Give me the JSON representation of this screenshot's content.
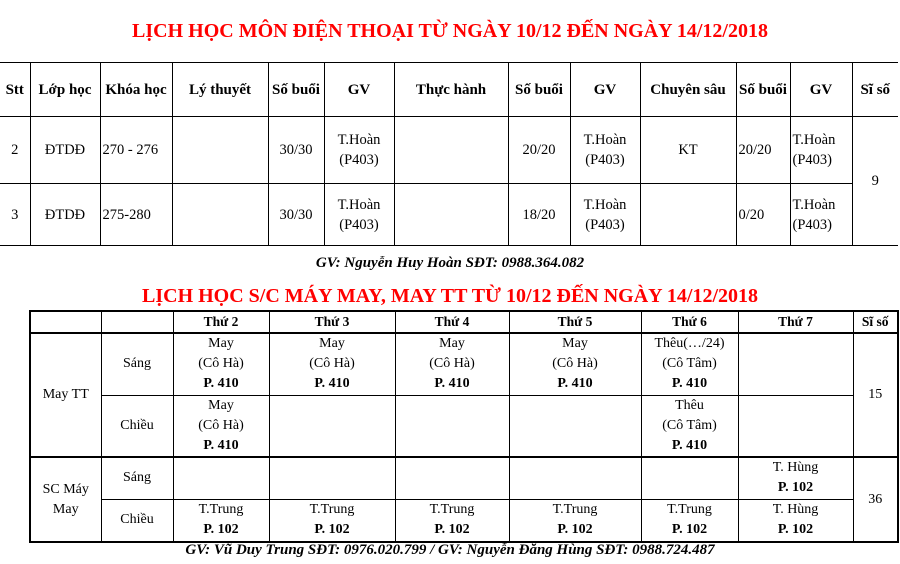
{
  "title1": "LỊCH HỌC MÔN ĐIỆN THOẠI TỪ NGÀY 10/12 ĐẾN NGÀY 14/12/2018",
  "table1": {
    "headers": [
      "Stt",
      "Lớp học",
      "Khóa học",
      "Lý thuyết",
      "Số buổi",
      "GV",
      "Thực hành",
      "Số buổi",
      "GV",
      "Chuyên sâu",
      "Số buổi",
      "GV",
      "Sĩ số"
    ],
    "rows": [
      {
        "stt": "2",
        "lop": "ĐTDĐ",
        "khoa": "270 - 276",
        "ly_thuyet": "",
        "so_buoi1": "30/30",
        "gv1a": "T.Hoàn",
        "gv1b": "(P403)",
        "thuc_hanh": "",
        "so_buoi2": "20/20",
        "gv2a": "T.Hoàn",
        "gv2b": "(P403)",
        "chuyen_sau": "KT",
        "so_buoi3": "20/20",
        "gv3a": "T.Hoàn",
        "gv3b": "(P403)"
      },
      {
        "stt": "3",
        "lop": "ĐTDĐ",
        "khoa": "275-280",
        "ly_thuyet": "",
        "so_buoi1": "30/30",
        "gv1a": "T.Hoàn",
        "gv1b": "(P403)",
        "thuc_hanh": "",
        "so_buoi2": "18/20",
        "gv2a": "T.Hoàn",
        "gv2b": "(P403)",
        "chuyen_sau": "",
        "so_buoi3": "0/20",
        "gv3a": "T.Hoàn",
        "gv3b": "(P403)"
      }
    ],
    "si_so": "9"
  },
  "gv1": "GV: Nguyễn Huy Hoàn SĐT: 0988.364.082",
  "title2": "LỊCH HỌC  S/C MÁY MAY, MAY TT TỪ 10/12 ĐẾN NGÀY 14/12/2018",
  "table2": {
    "headers": [
      "Thứ 2",
      "Thứ 3",
      "Thứ 4",
      "Thứ 5",
      "Thứ 6",
      "Thứ 7",
      "Sĩ số"
    ],
    "groups": [
      {
        "name": "May TT",
        "si_so": "15",
        "sessions": [
          {
            "name": "Sáng",
            "cells": [
              [
                "May",
                "(Cô Hà)",
                "P. 410"
              ],
              [
                "May",
                "(Cô Hà)",
                "P. 410"
              ],
              [
                "May",
                "(Cô Hà)",
                "P. 410"
              ],
              [
                "May",
                "(Cô Hà)",
                "P. 410"
              ],
              [
                "Thêu(…/24)",
                "(Cô Tâm)",
                "P. 410"
              ],
              [
                "",
                "",
                ""
              ]
            ]
          },
          {
            "name": "Chiều",
            "cells": [
              [
                "May",
                "(Cô Hà)",
                "P. 410"
              ],
              [
                "",
                "",
                ""
              ],
              [
                "",
                "",
                ""
              ],
              [
                "",
                "",
                ""
              ],
              [
                "Thêu",
                "(Cô Tâm)",
                "P. 410"
              ],
              [
                "",
                "",
                ""
              ]
            ]
          }
        ]
      },
      {
        "name": "SC Máy May",
        "si_so": "36",
        "sessions": [
          {
            "name": "Sáng",
            "cells": [
              [
                "",
                ""
              ],
              [
                "",
                ""
              ],
              [
                "",
                ""
              ],
              [
                "",
                ""
              ],
              [
                "",
                ""
              ],
              [
                "T. Hùng",
                "P. 102"
              ]
            ]
          },
          {
            "name": "Chiều",
            "cells": [
              [
                "T.Trung",
                "P. 102"
              ],
              [
                "T.Trung",
                "P. 102"
              ],
              [
                "T.Trung",
                "P. 102"
              ],
              [
                "T.Trung",
                "P. 102"
              ],
              [
                "T.Trung",
                "P. 102"
              ],
              [
                "T. Hùng",
                "P. 102"
              ]
            ]
          }
        ]
      }
    ]
  },
  "gv2": "GV: Vũ Duy Trung  SĐT: 0976.020.799 /   GV: Nguyễn Đăng Hùng   SĐT: 0988.724.487"
}
